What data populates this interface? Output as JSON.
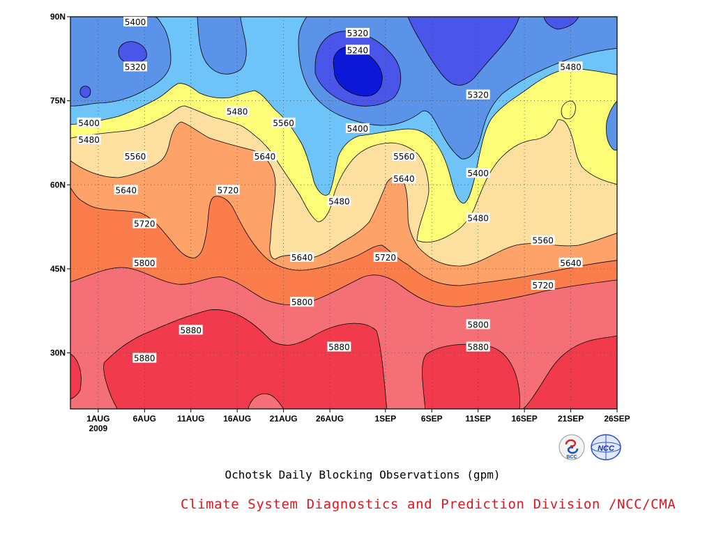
{
  "chart_data": {
    "type": "contour",
    "title": "Ochotsk Daily Blocking Observations (gpm)",
    "x_ticks": [
      "1AUG",
      "6AUG",
      "11AUG",
      "16AUG",
      "21AUG",
      "26AUG",
      "1SEP",
      "6SEP",
      "11SEP",
      "16SEP",
      "21SEP",
      "26SEP"
    ],
    "x_year_label": "2009",
    "x_range": [
      "2009-07-29",
      "2009-09-26"
    ],
    "y_ticks": [
      "30N",
      "45N",
      "60N",
      "75N",
      "90N"
    ],
    "y_range": [
      20,
      90
    ],
    "contour_levels": [
      5240,
      5320,
      5400,
      5480,
      5560,
      5640,
      5720,
      5800,
      5880
    ],
    "fill_colors": [
      "#0c18d8",
      "#4a55ea",
      "#5a93e8",
      "#6ec4f8",
      "#fdfd78",
      "#fde0a0",
      "#fda36a",
      "#fb7d4c",
      "#f57076",
      "#f13b4c"
    ],
    "contour_labels": [
      {
        "date": "2009-08-05",
        "lat": 89,
        "value": "5400"
      },
      {
        "date": "2009-08-05",
        "lat": 81,
        "value": "5320"
      },
      {
        "date": "2009-08-29",
        "lat": 87,
        "value": "5320"
      },
      {
        "date": "2009-08-29",
        "lat": 84,
        "value": "5240"
      },
      {
        "date": "2009-08-29",
        "lat": 70,
        "value": "5400"
      },
      {
        "date": "2009-07-31",
        "lat": 71,
        "value": "5400"
      },
      {
        "date": "2009-07-31",
        "lat": 68,
        "value": "5480"
      },
      {
        "date": "2009-08-16",
        "lat": 73,
        "value": "5480"
      },
      {
        "date": "2009-08-21",
        "lat": 71,
        "value": "5560"
      },
      {
        "date": "2009-08-05",
        "lat": 65,
        "value": "5560"
      },
      {
        "date": "2009-08-19",
        "lat": 65,
        "value": "5640"
      },
      {
        "date": "2009-08-04",
        "lat": 59,
        "value": "5640"
      },
      {
        "date": "2009-08-15",
        "lat": 59,
        "value": "5720"
      },
      {
        "date": "2009-08-06",
        "lat": 53,
        "value": "5720"
      },
      {
        "date": "2009-08-06",
        "lat": 46,
        "value": "5800"
      },
      {
        "date": "2009-08-27",
        "lat": 57,
        "value": "5480"
      },
      {
        "date": "2009-09-03",
        "lat": 65,
        "value": "5560"
      },
      {
        "date": "2009-09-03",
        "lat": 61,
        "value": "5640"
      },
      {
        "date": "2009-09-01",
        "lat": 47,
        "value": "5720"
      },
      {
        "date": "2009-08-23",
        "lat": 47,
        "value": "5640"
      },
      {
        "date": "2009-08-23",
        "lat": 39,
        "value": "5800"
      },
      {
        "date": "2009-08-11",
        "lat": 34,
        "value": "5880"
      },
      {
        "date": "2009-08-06",
        "lat": 29,
        "value": "5880"
      },
      {
        "date": "2009-08-27",
        "lat": 31,
        "value": "5880"
      },
      {
        "date": "2009-09-11",
        "lat": 62,
        "value": "5400"
      },
      {
        "date": "2009-09-11",
        "lat": 54,
        "value": "5480"
      },
      {
        "date": "2009-09-11",
        "lat": 76,
        "value": "5320"
      },
      {
        "date": "2009-09-18",
        "lat": 50,
        "value": "5560"
      },
      {
        "date": "2009-09-21",
        "lat": 81,
        "value": "5480"
      },
      {
        "date": "2009-09-21",
        "lat": 46,
        "value": "5640"
      },
      {
        "date": "2009-09-18",
        "lat": 42,
        "value": "5720"
      },
      {
        "date": "2009-09-11",
        "lat": 35,
        "value": "5800"
      },
      {
        "date": "2009-09-11",
        "lat": 31,
        "value": "5880"
      }
    ]
  },
  "footer": {
    "title": "Ochotsk Daily Blocking Observations (gpm)",
    "credit": "Climate System Diagnostics and Prediction Division /NCC/CMA",
    "logos": [
      "BCC",
      "NCC"
    ]
  }
}
